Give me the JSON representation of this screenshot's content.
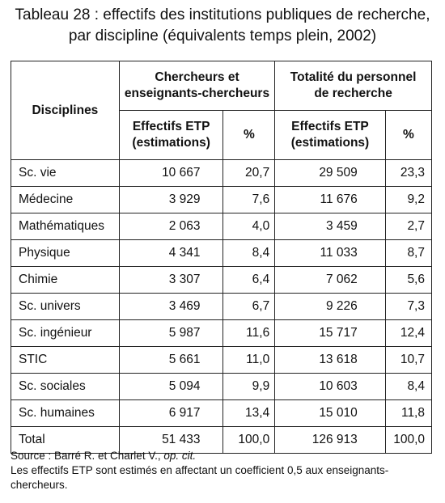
{
  "title": {
    "line1": "Tableau 28 : effectifs des institutions publiques de recherche,",
    "line2": "par discipline (équivalents temps plein, 2002)"
  },
  "table": {
    "header": {
      "disciplines": "Disciplines",
      "group1": {
        "line1": "Chercheurs et",
        "line2": "enseignants-chercheurs"
      },
      "group2": {
        "line1": "Totalité du personnel",
        "line2": "de recherche"
      },
      "effectifs": {
        "line1": "Effectifs ETP",
        "line2": "(estimations)"
      },
      "percent": "%"
    },
    "rows": [
      {
        "name": "Sc. vie",
        "eff1": "10 667",
        "pct1": "20,7",
        "eff2": "29 509",
        "pct2": "23,3"
      },
      {
        "name": "Médecine",
        "eff1": "3 929",
        "pct1": "7,6",
        "eff2": "11 676",
        "pct2": "9,2"
      },
      {
        "name": "Mathématiques",
        "eff1": "2 063",
        "pct1": "4,0",
        "eff2": "3 459",
        "pct2": "2,7"
      },
      {
        "name": "Physique",
        "eff1": "4 341",
        "pct1": "8,4",
        "eff2": "11 033",
        "pct2": "8,7"
      },
      {
        "name": "Chimie",
        "eff1": "3 307",
        "pct1": "6,4",
        "eff2": "7 062",
        "pct2": "5,6"
      },
      {
        "name": "Sc. univers",
        "eff1": "3 469",
        "pct1": "6,7",
        "eff2": "9 226",
        "pct2": "7,3"
      },
      {
        "name": "Sc. ingénieur",
        "eff1": "5 987",
        "pct1": "11,6",
        "eff2": "15 717",
        "pct2": "12,4"
      },
      {
        "name": "STIC",
        "eff1": "5 661",
        "pct1": "11,0",
        "eff2": "13 618",
        "pct2": "10,7"
      },
      {
        "name": "Sc. sociales",
        "eff1": "5 094",
        "pct1": "9,9",
        "eff2": "10 603",
        "pct2": "8,4"
      },
      {
        "name": "Sc. humaines",
        "eff1": "6 917",
        "pct1": "13,4",
        "eff2": "15 010",
        "pct2": "11,8"
      },
      {
        "name": "Total",
        "eff1": "51 433",
        "pct1": "100,0",
        "eff2": "126 913",
        "pct2": "100,0"
      }
    ]
  },
  "source": {
    "prefix": "Source : Barré R. et Charlet V., ",
    "citation": "op. cit.",
    "note": "Les effectifs ETP sont estimés en affectant un coefficient 0,5 aux enseignants-chercheurs."
  }
}
